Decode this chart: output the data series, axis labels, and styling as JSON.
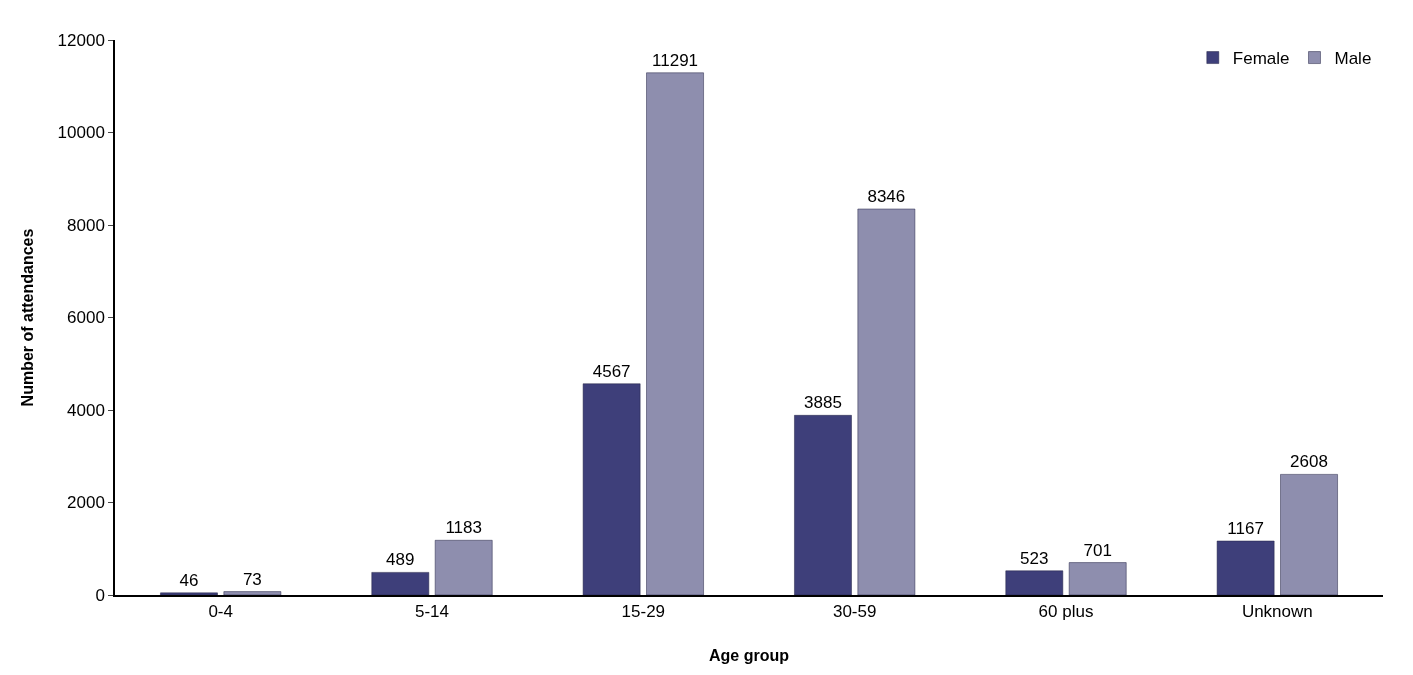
{
  "chart_data": {
    "type": "bar",
    "xlabel": "Age group",
    "ylabel": "Number of attendances",
    "categories": [
      "0-4",
      "5-14",
      "15-29",
      "30-59",
      "60 plus",
      "Unknown"
    ],
    "series": [
      {
        "name": "Female",
        "color": "#3e3f7a",
        "values": [
          46,
          489,
          4567,
          3885,
          523,
          1167
        ]
      },
      {
        "name": "Male",
        "color": "#8e8eae",
        "values": [
          73,
          1183,
          11291,
          8346,
          701,
          2608
        ]
      }
    ],
    "ylim": [
      0,
      12000
    ],
    "yticks": [
      0,
      2000,
      4000,
      6000,
      8000,
      10000,
      12000
    ],
    "grid": false,
    "legend": "top right",
    "data_labels": true
  }
}
